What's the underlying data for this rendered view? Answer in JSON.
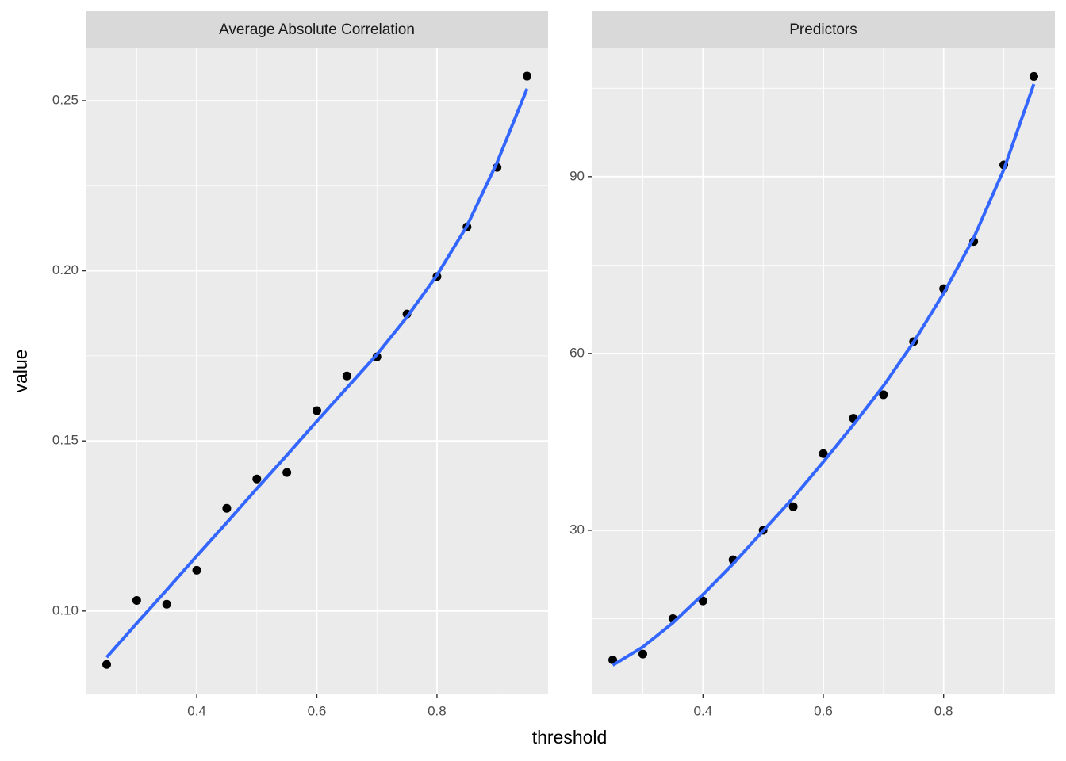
{
  "xlabel": "threshold",
  "ylabel": "value",
  "chart_data": [
    {
      "type": "scatter",
      "title": "Average Absolute Correlation",
      "x": [
        0.25,
        0.3,
        0.35,
        0.4,
        0.45,
        0.5,
        0.55,
        0.6,
        0.65,
        0.7,
        0.75,
        0.8,
        0.85,
        0.9,
        0.95
      ],
      "series": [
        {
          "type": "scatter",
          "color": "#000000",
          "values": [
            0.0843,
            0.1031,
            0.102,
            0.112,
            0.1302,
            0.1388,
            0.1407,
            0.1589,
            0.1691,
            0.1747,
            0.1873,
            0.1983,
            0.2129,
            0.2304,
            0.2572
          ]
        },
        {
          "type": "line",
          "color": "#3366ff",
          "values": [
            0.0864,
            0.0964,
            0.1062,
            0.1162,
            0.126,
            0.136,
            0.1458,
            0.1558,
            0.1656,
            0.1754,
            0.1864,
            0.1987,
            0.2132,
            0.2318,
            0.2535
          ]
        }
      ],
      "xlim": [
        0.215,
        0.985
      ],
      "ylim": [
        0.0755,
        0.2656
      ],
      "xticks": [
        0.4,
        0.6,
        0.8
      ],
      "yticks": [
        {
          "value": 0.1,
          "label": "0.10"
        },
        0.15,
        {
          "value": 0.2,
          "label": "0.20"
        },
        0.25
      ],
      "grid": true
    },
    {
      "type": "scatter",
      "title": "Predictors",
      "x": [
        0.25,
        0.3,
        0.35,
        0.4,
        0.45,
        0.5,
        0.55,
        0.6,
        0.65,
        0.7,
        0.75,
        0.8,
        0.85,
        0.9,
        0.95
      ],
      "series": [
        {
          "type": "scatter",
          "color": "#000000",
          "values": [
            8,
            9,
            15,
            18,
            25,
            30,
            34,
            43,
            49,
            53,
            62,
            71,
            79,
            92,
            107
          ]
        },
        {
          "type": "line",
          "color": "#3366ff",
          "values": [
            7.1,
            10.2,
            14.3,
            19.1,
            24.3,
            29.9,
            35.5,
            41.6,
            47.9,
            54.5,
            61.9,
            70.2,
            79.6,
            91.2,
            105.7
          ]
        }
      ],
      "xlim": [
        0.215,
        0.985
      ],
      "ylim": [
        2.15,
        111.9
      ],
      "xticks": [
        0.4,
        0.6,
        0.8
      ],
      "yticks": [
        30,
        60,
        90
      ],
      "grid": true
    }
  ]
}
